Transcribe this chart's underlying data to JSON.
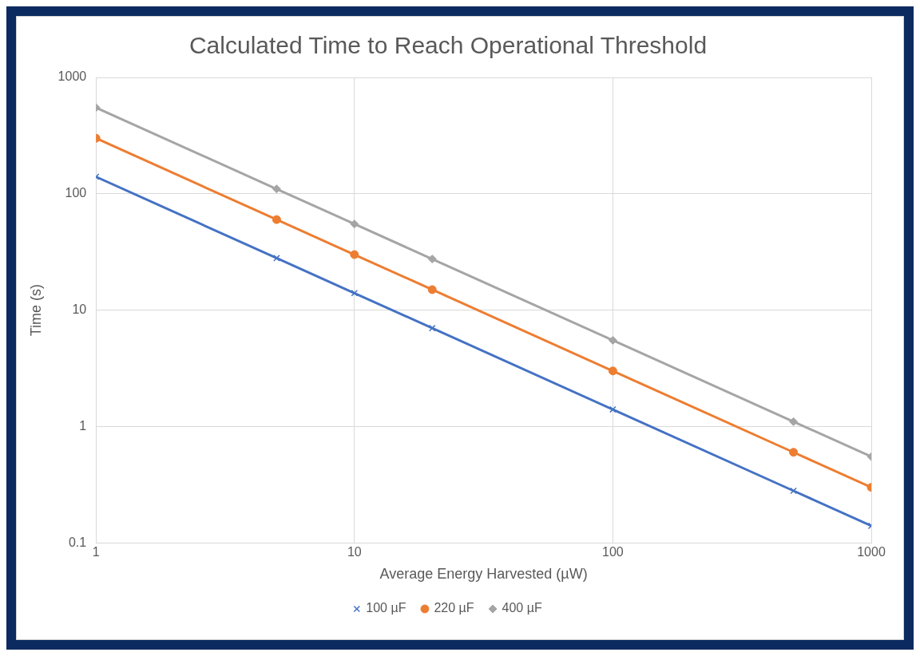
{
  "chart_data": {
    "type": "line",
    "title": "Calculated Time to Reach Operational Threshold",
    "xlabel": "Average Energy Harvested (µW)",
    "ylabel": "Time (s)",
    "x": [
      1,
      5,
      10,
      20,
      100,
      500,
      1000
    ],
    "series": [
      {
        "name": "100 µF",
        "color": "#4472c4",
        "marker": "cross",
        "values": [
          140,
          28,
          14,
          7,
          1.4,
          0.28,
          0.14
        ]
      },
      {
        "name": "220 µF",
        "color": "#ed7d31",
        "marker": "circle",
        "values": [
          300,
          60,
          30,
          15,
          3,
          0.6,
          0.3
        ]
      },
      {
        "name": "400 µF",
        "color": "#a5a5a5",
        "marker": "diamond",
        "values": [
          550,
          110,
          55,
          27.5,
          5.5,
          1.1,
          0.55
        ]
      }
    ],
    "xlim": [
      1,
      1000
    ],
    "xticks": [
      1,
      10,
      100,
      1000
    ],
    "ylim": [
      0.1,
      1000
    ],
    "yticks": [
      0.1,
      1,
      10,
      100,
      1000
    ],
    "log": "xy",
    "grid": true,
    "legend": "bottom",
    "line_style": "solid"
  }
}
